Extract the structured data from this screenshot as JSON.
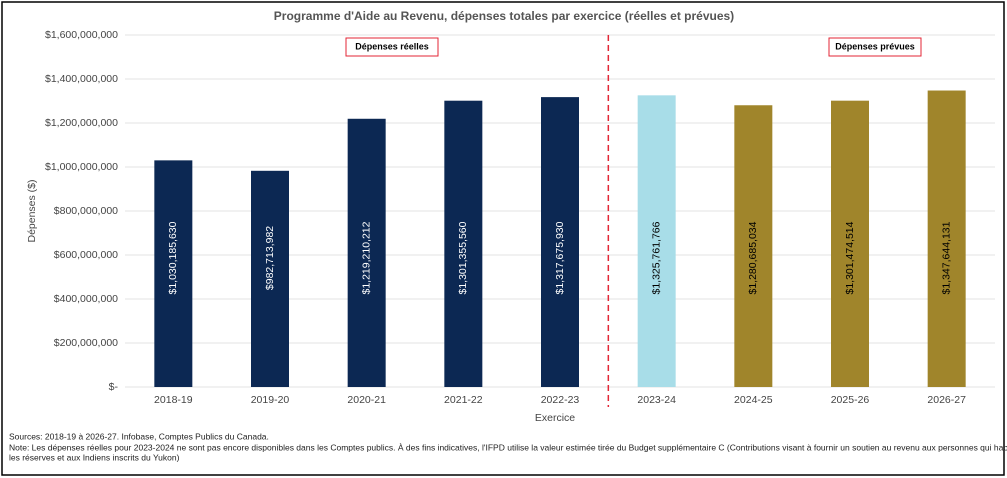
{
  "chart_data": {
    "type": "bar",
    "title": "Programme d'Aide au Revenu, dépenses totales par exercice (réelles et prévues)",
    "categories": [
      "2018-19",
      "2019-20",
      "2020-21",
      "2021-22",
      "2022-23",
      "2023-24",
      "2024-25",
      "2025-26",
      "2026-27"
    ],
    "values": [
      1030185630,
      982713982,
      1219210212,
      1301355560,
      1317675930,
      1325761766,
      1280685034,
      1301474514,
      1347644131
    ],
    "value_labels": [
      "$1,030,185,630",
      "$982,713,982",
      "$1,219,210,212",
      "$1,301,355,560",
      "$1,317,675,930",
      "$1,325,761,766",
      "$1,280,685,034",
      "$1,301,474,514",
      "$1,347,644,131"
    ],
    "colors": [
      "#0c2853",
      "#0c2853",
      "#0c2853",
      "#0c2853",
      "#0c2853",
      "#a8dde8",
      "#a0852b",
      "#a0852b",
      "#a0852b"
    ],
    "ylim": [
      0,
      1600000000
    ],
    "yticks": [
      {
        "value": 0,
        "label": "$-"
      },
      {
        "value": 200000000,
        "label": "$200,000,000"
      },
      {
        "value": 400000000,
        "label": "$400,000,000"
      },
      {
        "value": 600000000,
        "label": "$600,000,000"
      },
      {
        "value": 800000000,
        "label": "$800,000,000"
      },
      {
        "value": 1000000000,
        "label": "$1,000,000,000"
      },
      {
        "value": 1200000000,
        "label": "$1,200,000,000"
      },
      {
        "value": 1400000000,
        "label": "$1,400,000,000"
      },
      {
        "value": 1600000000,
        "label": "$1,600,000,000"
      }
    ],
    "grid": true,
    "ylabel": "Dépenses ($)",
    "xlabel": "Exercice",
    "annotations": [
      "Dépenses réelles",
      "Dépenses prévues"
    ],
    "source": "Sources: 2018-19 à 2026-27. Infobase, Comptes Publics du Canada.",
    "note_lines": [
      "Note: Les dépenses réelles pour 2023-2024 ne sont pas encore disponibles dans les Comptes publics. À des fins indicatives, l'IFPD utilise la valeur estimée tirée du Budget supplémentaire C (Contributions visant à fournir un soutien au revenu aux personnes qui habitent dans",
      "les réserves et aux Indiens inscrits du Yukon)"
    ]
  }
}
